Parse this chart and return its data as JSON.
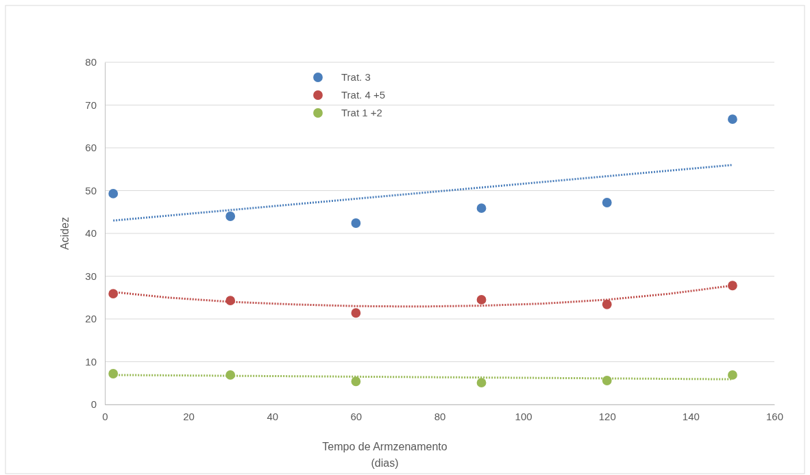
{
  "chart_data": {
    "type": "scatter",
    "xlabel": "Tempo  de Armzenamento\n(dias)",
    "ylabel": "Acidez",
    "xlim": [
      0,
      160
    ],
    "xticks": [
      0,
      20,
      40,
      60,
      80,
      100,
      120,
      140,
      160
    ],
    "ylim": [
      0,
      80
    ],
    "yticks": [
      0,
      10,
      20,
      30,
      40,
      50,
      60,
      70,
      80
    ],
    "grid": "y",
    "legend": "top",
    "marker": "circle",
    "series": [
      {
        "name": "Trat. 3",
        "color": "#4a7ebb",
        "x": [
          2,
          30,
          60,
          90,
          120,
          150
        ],
        "values": [
          49.3,
          44.0,
          42.4,
          45.9,
          47.2,
          66.7
        ]
      },
      {
        "name": "Trat. 4 +5",
        "color": "#be4b48",
        "x": [
          2,
          30,
          60,
          90,
          120,
          150
        ],
        "values": [
          25.9,
          24.3,
          21.4,
          24.5,
          23.4,
          27.8
        ]
      },
      {
        "name": "Trat 1 +2",
        "color": "#98b954",
        "x": [
          2,
          30,
          60,
          90,
          120,
          150
        ],
        "values": [
          7.2,
          6.9,
          5.4,
          5.1,
          5.6,
          6.9
        ]
      },
      {
        "type": "line",
        "line_style": "dotted",
        "marker": "none",
        "color": "#4a7ebb",
        "x": [
          2,
          150
        ],
        "values": [
          43,
          56
        ]
      },
      {
        "type": "line",
        "line_style": "dotted",
        "marker": "none",
        "color": "#be4b48",
        "x": [
          2,
          15,
          30,
          45,
          60,
          75,
          90,
          105,
          120,
          135,
          150
        ],
        "values": [
          26.3,
          25.0,
          24.0,
          23.4,
          23.0,
          22.9,
          23.1,
          23.6,
          24.5,
          25.9,
          27.8
        ]
      },
      {
        "type": "line",
        "line_style": "dotted",
        "marker": "none",
        "color": "#98b954",
        "x": [
          2,
          150
        ],
        "values": [
          6.9,
          5.9
        ]
      }
    ]
  }
}
